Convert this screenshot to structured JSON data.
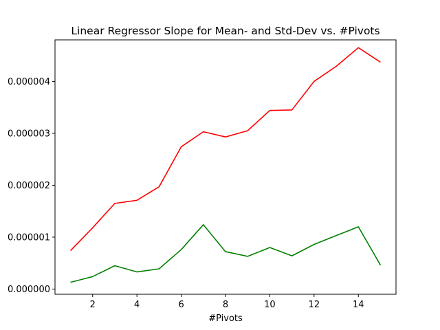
{
  "chart_data": {
    "type": "line",
    "title": "Linear Regressor Slope for Mean- and Std-Dev vs. #Pivots",
    "xlabel": "#Pivots",
    "ylabel": "",
    "xlim": [
      0.3,
      15.7
    ],
    "ylim": [
      -1e-07,
      4.8e-06
    ],
    "xticks": [
      2,
      4,
      6,
      8,
      10,
      12,
      14
    ],
    "yticks": [
      0.0,
      1e-06,
      2e-06,
      3e-06,
      4e-06
    ],
    "ytick_labels": [
      "0.000000",
      "0.000001",
      "0.000002",
      "0.000003",
      "0.000004"
    ],
    "grid": false,
    "legend": "none",
    "x": [
      1,
      2,
      3,
      4,
      5,
      6,
      7,
      8,
      9,
      10,
      11,
      12,
      13,
      14,
      15
    ],
    "series": [
      {
        "color": "#ff0000",
        "values": [
          7.4e-07,
          1.18e-06,
          1.65e-06,
          1.71e-06,
          1.97e-06,
          2.74e-06,
          3.03e-06,
          2.93e-06,
          3.05e-06,
          3.44e-06,
          3.45e-06,
          4e-06,
          4.29e-06,
          4.65e-06,
          4.37e-06
        ]
      },
      {
        "color": "#008000",
        "values": [
          1.3e-07,
          2.4e-07,
          4.5e-07,
          3.3e-07,
          3.9e-07,
          7.6e-07,
          1.24e-06,
          7.2e-07,
          6.3e-07,
          8e-07,
          6.4e-07,
          8.6e-07,
          1.03e-06,
          1.2e-06,
          4.6e-07
        ]
      }
    ]
  }
}
